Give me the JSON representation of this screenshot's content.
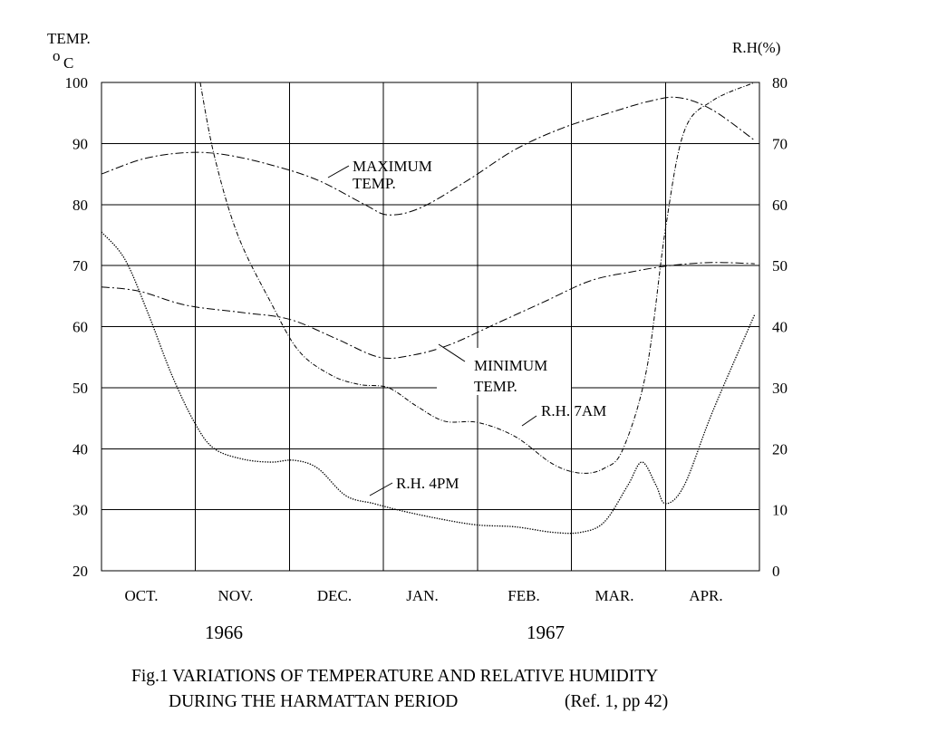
{
  "chart_data": {
    "type": "line",
    "title": "Fig.1  VARIATIONS OF TEMPERATURE AND RELATIVE HUMIDITY",
    "subtitle": "DURING THE HARMATTAN PERIOD",
    "reference": "(Ref. 1, pp 42)",
    "y_left_label_line1": "TEMP.",
    "y_left_label_degree": "o",
    "y_left_label_unit": "C",
    "y_right_label": "R.H(%)",
    "y_left_ticks": [
      "100",
      "90",
      "80",
      "70",
      "60",
      "50",
      "40",
      "30",
      "20"
    ],
    "y_right_ticks": [
      "80",
      "70",
      "60",
      "50",
      "40",
      "30",
      "20",
      "10",
      "0"
    ],
    "y_left_lim": [
      20,
      100
    ],
    "y_right_lim": [
      0,
      80
    ],
    "x_lim": [
      0,
      7
    ],
    "categories": [
      "OCT.",
      "NOV.",
      "DEC.",
      "JAN.",
      "FEB.",
      "MAR.",
      "APR."
    ],
    "years": [
      {
        "label": "1966",
        "months": [
          "OCT.",
          "NOV.",
          "DEC."
        ]
      },
      {
        "label": "1967",
        "months": [
          "JAN.",
          "FEB.",
          "MAR.",
          "APR."
        ]
      }
    ],
    "grid": true,
    "series": [
      {
        "name": "MAXIMUM TEMP.",
        "label_lines": [
          "MAXIMUM",
          "TEMP."
        ],
        "axis": "left",
        "style": "dashed",
        "x": [
          0,
          0.45,
          0.9,
          1.3,
          1.8,
          2.3,
          2.8,
          3.05,
          3.4,
          3.9,
          4.4,
          4.9,
          5.4,
          5.85,
          6.15,
          6.5,
          6.95
        ],
        "y": [
          85,
          87.5,
          88.5,
          88.2,
          86.5,
          84,
          80,
          78.3,
          79.5,
          84,
          89,
          92.5,
          95,
          97,
          97.5,
          95.5,
          90.5
        ]
      },
      {
        "name": "MINIMUM TEMP.",
        "label_lines": [
          "MINIMUM",
          "TEMP."
        ],
        "axis": "left",
        "style": "dashed",
        "x": [
          0,
          0.4,
          0.9,
          1.5,
          2.0,
          2.5,
          2.95,
          3.3,
          3.7,
          4.2,
          4.7,
          5.2,
          5.65,
          6.05,
          6.5,
          6.95
        ],
        "y": [
          66.5,
          65.8,
          63.5,
          62.3,
          61.2,
          58,
          55,
          55.3,
          57,
          60.5,
          64,
          67.5,
          69,
          70,
          70.5,
          70.3
        ]
      },
      {
        "name": "R.H. 7AM",
        "axis": "right",
        "style": "dashdot",
        "x": [
          1.05,
          1.2,
          1.45,
          1.8,
          2.1,
          2.45,
          2.75,
          3.05,
          3.35,
          3.65,
          4.0,
          4.4,
          4.8,
          5.1,
          5.35,
          5.55,
          5.8,
          6.0,
          6.2,
          6.5,
          6.95
        ],
        "y": [
          80,
          68,
          55,
          44,
          36,
          32,
          30.5,
          30,
          27,
          24.5,
          24.3,
          22,
          17.5,
          16,
          16.8,
          20,
          33,
          56,
          72,
          77,
          80
        ]
      },
      {
        "name": "R.H. 4PM",
        "axis": "right",
        "style": "dotted",
        "x": [
          0,
          0.25,
          0.5,
          0.75,
          1.0,
          1.2,
          1.5,
          1.8,
          2.05,
          2.3,
          2.6,
          2.9,
          3.2,
          3.6,
          4.0,
          4.4,
          4.8,
          5.1,
          5.35,
          5.6,
          5.75,
          5.9,
          6.0,
          6.2,
          6.5,
          6.95
        ],
        "y": [
          55.5,
          51,
          42,
          32,
          24,
          20,
          18.3,
          17.8,
          18.1,
          16.8,
          12.3,
          11,
          9.8,
          8.5,
          7.5,
          7.2,
          6.3,
          6.3,
          8,
          14,
          17.8,
          14,
          11,
          14,
          26,
          42
        ]
      }
    ]
  }
}
